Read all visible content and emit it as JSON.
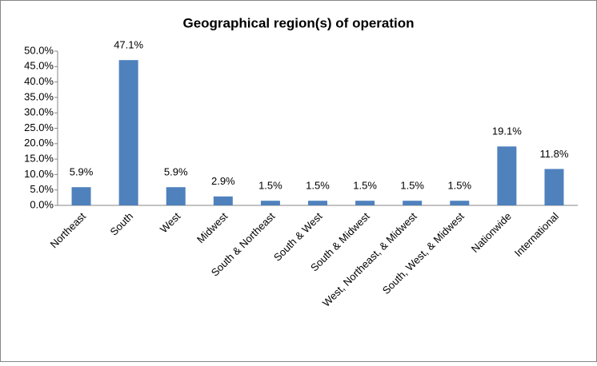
{
  "chart_data": {
    "type": "bar",
    "title": "Geographical region(s) of operation",
    "categories": [
      "Northeast",
      "South",
      "West",
      "Midwest",
      "South & Northeast",
      "South & West",
      "South & Midwest",
      "West, Northeast, & Midwest",
      "South, West, & Midwest",
      "Nationwide",
      "International"
    ],
    "values": [
      5.9,
      47.1,
      5.9,
      2.9,
      1.5,
      1.5,
      1.5,
      1.5,
      1.5,
      19.1,
      11.8
    ],
    "value_labels": [
      "5.9%",
      "47.1%",
      "5.9%",
      "2.9%",
      "1.5%",
      "1.5%",
      "1.5%",
      "1.5%",
      "1.5%",
      "19.1%",
      "11.8%"
    ],
    "color": "#4f81bd",
    "ylim": [
      0,
      50
    ],
    "yticks": [
      {
        "value": 0,
        "label": "0.0%"
      },
      {
        "value": 5,
        "label": "5.0%"
      },
      {
        "value": 10,
        "label": "10.0%"
      },
      {
        "value": 15,
        "label": "15.0%"
      },
      {
        "value": 20,
        "label": "20.0%"
      },
      {
        "value": 25,
        "label": "25.0%"
      },
      {
        "value": 30,
        "label": "30.0%"
      },
      {
        "value": 35,
        "label": "35.0%"
      },
      {
        "value": 40,
        "label": "40.0%"
      },
      {
        "value": 45,
        "label": "45.0%"
      },
      {
        "value": 50,
        "label": "50.0%"
      }
    ],
    "grid": false
  }
}
